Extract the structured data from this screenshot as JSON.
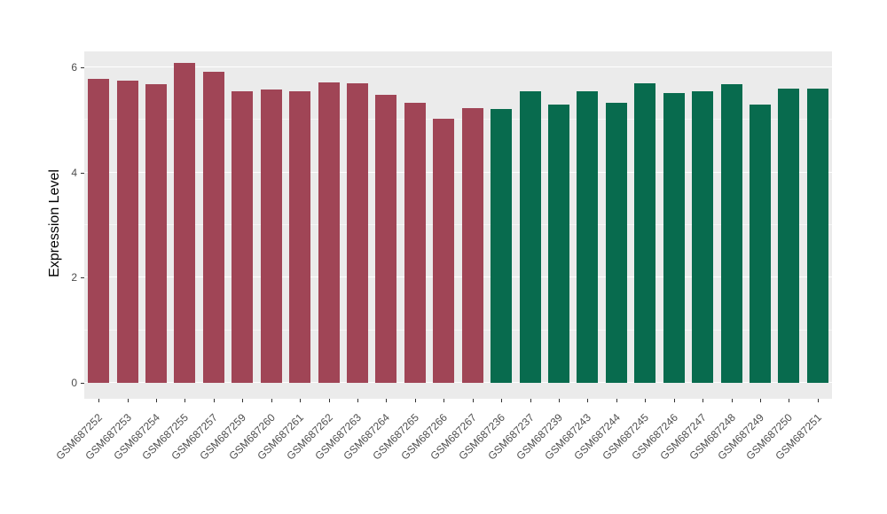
{
  "chart_data": {
    "type": "bar",
    "title": "",
    "xlabel": "",
    "ylabel": "Expression Level",
    "ylim": [
      0,
      6.33
    ],
    "yticks": [
      0,
      2,
      4,
      6
    ],
    "minor_gridlines": [
      1,
      3,
      5
    ],
    "grid": true,
    "legend_position": "none",
    "panel_bg": "#EBEBEB",
    "gridline_color": "#FFFFFF",
    "axis_text_color": "#4D4D4D",
    "group_colors": [
      "#A04556",
      "#086B4E"
    ],
    "categories": [
      "GSM687252",
      "GSM687253",
      "GSM687254",
      "GSM687255",
      "GSM687257",
      "GSM687259",
      "GSM687260",
      "GSM687261",
      "GSM687262",
      "GSM687263",
      "GSM687264",
      "GSM687265",
      "GSM687266",
      "GSM687267",
      "GSM687236",
      "GSM687237",
      "GSM687239",
      "GSM687243",
      "GSM687244",
      "GSM687245",
      "GSM687246",
      "GSM687247",
      "GSM687248",
      "GSM687249",
      "GSM687250",
      "GSM687251"
    ],
    "values": [
      5.78,
      5.75,
      5.68,
      6.08,
      5.92,
      5.55,
      5.58,
      5.55,
      5.72,
      5.7,
      5.48,
      5.32,
      5.02,
      5.22,
      5.2,
      5.55,
      5.3,
      5.55,
      5.32,
      5.7,
      5.52,
      5.55,
      5.68,
      5.3,
      5.6,
      5.6
    ],
    "group_of": [
      0,
      0,
      0,
      0,
      0,
      0,
      0,
      0,
      0,
      0,
      0,
      0,
      0,
      0,
      1,
      1,
      1,
      1,
      1,
      1,
      1,
      1,
      1,
      1,
      1,
      1
    ]
  }
}
